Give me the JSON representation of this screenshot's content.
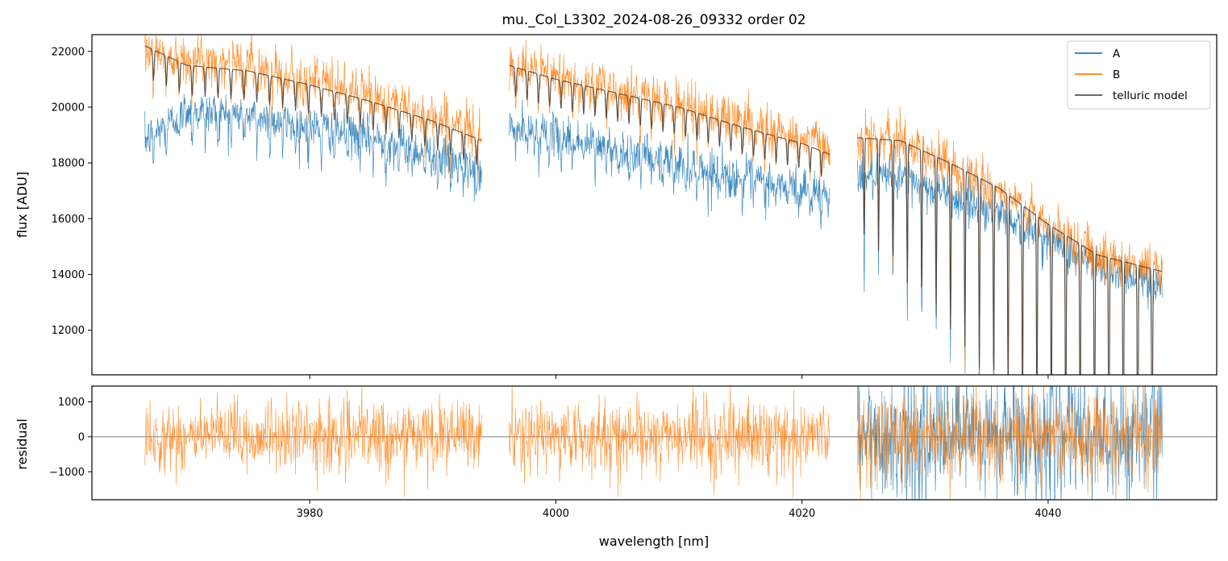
{
  "chart_data": [
    {
      "panel": "main",
      "type": "line",
      "title": "mu._Col_L3302_2024-08-26_09332  order 02",
      "xlabel": "wavelength [nm]",
      "ylabel": "flux [ADU]",
      "xlim": [
        3962.3,
        4053.7
      ],
      "ylim": [
        10400,
        22600
      ],
      "xticks": [
        3980,
        4000,
        4020,
        4040
      ],
      "yticks": [
        12000,
        14000,
        16000,
        18000,
        20000,
        22000
      ],
      "ytick_labels": [
        "12000",
        "14000",
        "16000",
        "18000",
        "20000",
        "22000"
      ],
      "legend": {
        "position": "top-right",
        "entries": [
          "A",
          "B",
          "telluric model"
        ]
      },
      "colors": {
        "A": "#1f77b4",
        "B": "#ff7f0e",
        "telluric model": "#555555"
      },
      "segments": [
        {
          "x_range": [
            3966.6,
            3994.0
          ]
        },
        {
          "x_range": [
            3996.2,
            4022.3
          ]
        },
        {
          "x_range": [
            4024.5,
            4049.3
          ]
        }
      ],
      "series": [
        {
          "name": "A",
          "x": [
            3966.6,
            3970,
            3975,
            3980,
            3985,
            3990,
            3994.0,
            3996.2,
            4000,
            4005,
            4010,
            4015,
            4020,
            4022.3,
            4024.5,
            4028,
            4032,
            4036,
            4040,
            4044,
            4049.3
          ],
          "values": [
            18800,
            19900,
            19700,
            19300,
            18900,
            18300,
            17600,
            19300,
            19000,
            18500,
            18000,
            17500,
            17100,
            16900,
            17500,
            17500,
            16800,
            16200,
            15200,
            14300,
            13600
          ]
        },
        {
          "name": "B",
          "x": [
            3966.6,
            3970,
            3975,
            3980,
            3985,
            3990,
            3994.0,
            3996.2,
            4000,
            4005,
            4010,
            4015,
            4020,
            4022.3,
            4024.5,
            4028,
            4032,
            4036,
            4040,
            4044,
            4049.3
          ],
          "values": [
            22000,
            21800,
            21500,
            21000,
            20400,
            19700,
            19000,
            21500,
            21100,
            20600,
            20100,
            19500,
            18900,
            18600,
            18900,
            18800,
            18000,
            17000,
            15700,
            14800,
            14100
          ]
        },
        {
          "name": "telluric model",
          "x": [
            3966.6,
            3970,
            3975,
            3980,
            3985,
            3990,
            3994.0,
            3996.2,
            4000,
            4005,
            4010,
            4015,
            4020,
            4022.3,
            4024.5,
            4028,
            4032,
            4036,
            4040,
            4044,
            4049.3
          ],
          "values": [
            22200,
            21500,
            21300,
            20800,
            20200,
            19500,
            18800,
            21500,
            21000,
            20500,
            20000,
            19300,
            18700,
            18300,
            18900,
            18800,
            18000,
            17100,
            15800,
            14700,
            14100
          ]
        }
      ]
    },
    {
      "panel": "residual",
      "type": "line",
      "xlabel": "wavelength [nm]",
      "ylabel": "residual",
      "xlim": [
        3962.3,
        4053.7
      ],
      "ylim": [
        -1800,
        1450
      ],
      "xticks": [
        3980,
        4000,
        4020,
        4040
      ],
      "yticks": [
        -1000,
        0,
        1000
      ],
      "ytick_labels": [
        "−1000",
        "0",
        "1000"
      ],
      "reference_line": 0,
      "series": [
        {
          "name": "A",
          "noise_amplitude": 800,
          "x_range": [
            4024.5,
            4049.3
          ]
        },
        {
          "name": "B",
          "noise_amplitude": 500,
          "x_range": [
            3966.6,
            4049.3
          ]
        }
      ]
    }
  ]
}
